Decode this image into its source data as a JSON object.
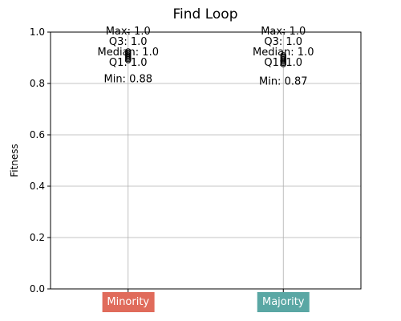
{
  "chart_data": {
    "type": "box",
    "title": "Find Loop",
    "xlabel": "",
    "ylabel": "Fitness",
    "ylim": [
      0.0,
      1.0
    ],
    "yticks": [
      "0.0",
      "0.2",
      "0.4",
      "0.6",
      "0.8",
      "1.0"
    ],
    "grid": true,
    "categories": [
      "Minority",
      "Majority"
    ],
    "category_colors": [
      "#e06b5b",
      "#5aa7a4"
    ],
    "boxes": [
      {
        "name": "Minority",
        "min": 0.88,
        "q1": 1.0,
        "median": 1.0,
        "q3": 1.0,
        "max": 1.0,
        "outliers": [
          0.89,
          0.895,
          0.9,
          0.905,
          0.91,
          0.915,
          0.92,
          0.925
        ],
        "labels": {
          "max": "Max: 1.0",
          "q3": "Q3: 1.0",
          "median": "Median: 1.0",
          "q1": "Q1: 1.0",
          "min": "Min: 0.88"
        }
      },
      {
        "name": "Majority",
        "min": 0.87,
        "q1": 1.0,
        "median": 1.0,
        "q3": 1.0,
        "max": 1.0,
        "outliers": [
          0.875,
          0.88,
          0.885,
          0.89,
          0.895,
          0.9,
          0.905,
          0.91
        ],
        "labels": {
          "max": "Max: 1.0",
          "q3": "Q3: 1.0",
          "median": "Median: 1.0",
          "q1": "Q1: 1.0",
          "min": "Min: 0.87"
        }
      }
    ]
  }
}
